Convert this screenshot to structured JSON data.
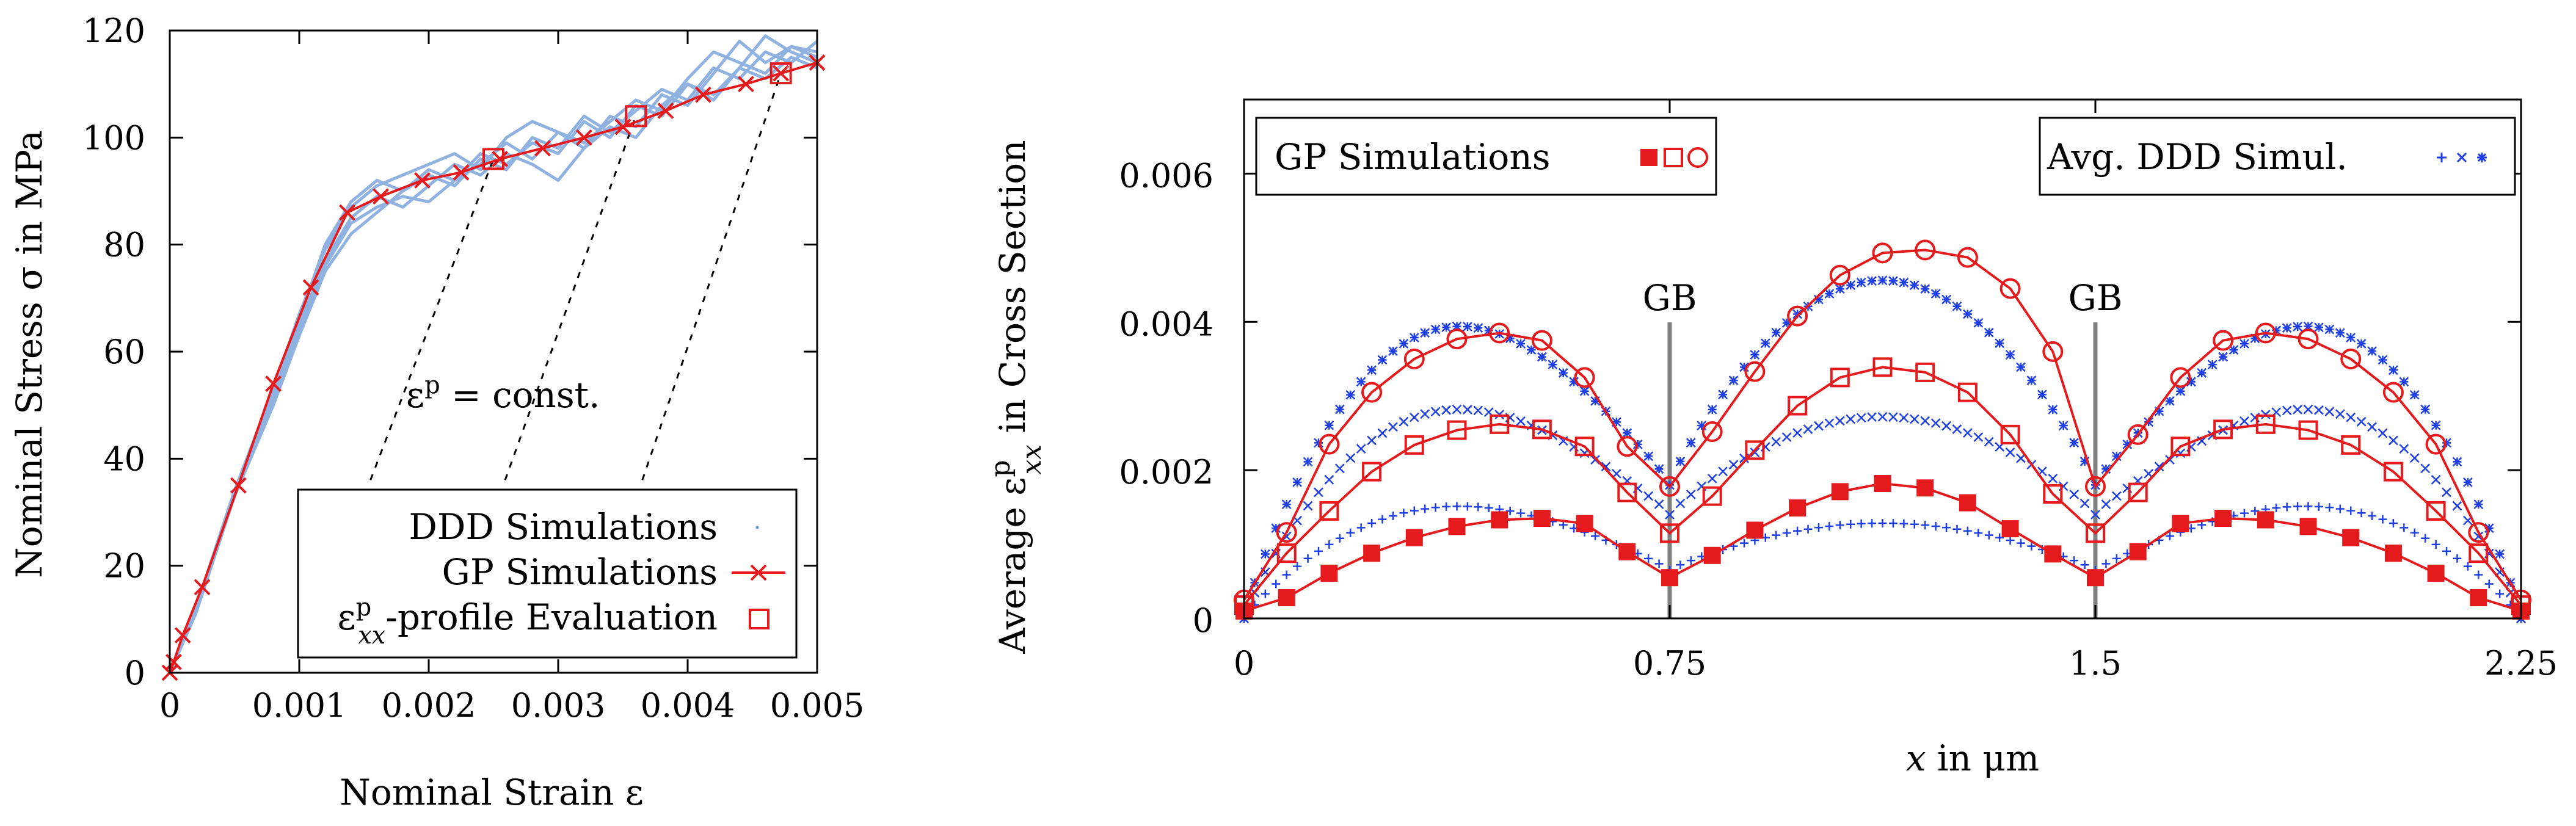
{
  "chart_data": [
    {
      "type": "line",
      "xlabel": "Nominal Strain ε",
      "ylabel": "Nominal Stress σ in MPa",
      "xlim": [
        0,
        0.005
      ],
      "ylim": [
        0,
        120
      ],
      "xticks": [
        0,
        0.001,
        0.002,
        0.003,
        0.004,
        0.005
      ],
      "xtick_labels": [
        "0",
        "0.001",
        "0.002",
        "0.003",
        "0.004",
        "0.005"
      ],
      "yticks": [
        0,
        20,
        40,
        60,
        80,
        100,
        120
      ],
      "ytick_labels": [
        "0",
        "20",
        "40",
        "60",
        "80",
        "100",
        "120"
      ],
      "annotation": "ε^p = const.",
      "annotation_base": "ε",
      "annotation_sup": "p",
      "annotation_rest": " = const.",
      "legend": {
        "placement": "bottom-right",
        "entries": [
          "DDD Simulations",
          "GP Simulations",
          "ε^p_xx-profile Evaluation"
        ],
        "ddd_label": "DDD Simulations",
        "gp_label": "GP Simulations",
        "eval_label_base": "ε",
        "eval_label_sup": "p",
        "eval_label_sub": "xx",
        "eval_label_rest": "-profile Evaluation"
      },
      "series": [
        {
          "name": "GP Simulations",
          "color": "#e41a1c",
          "marker": "x",
          "x": [
            0,
            3e-05,
            0.0001,
            0.00025,
            0.00053,
            0.0008,
            0.00109,
            0.00137,
            0.00163,
            0.00195,
            0.00225,
            0.00255,
            0.00288,
            0.0032,
            0.0035,
            0.00383,
            0.00412,
            0.00445,
            0.00472,
            0.005
          ],
          "y": [
            0,
            2,
            7,
            16,
            35,
            54,
            72,
            86,
            89,
            92,
            93.5,
            96,
            98,
            100,
            102,
            105,
            108,
            110,
            112,
            114
          ]
        },
        {
          "name": "DDD Simulations",
          "color": "#8fb2e0",
          "marker": "none",
          "x": [
            0,
            0.0002,
            0.0005,
            0.0008,
            0.001,
            0.0012,
            0.0014,
            0.0016,
            0.0018,
            0.002,
            0.0022,
            0.0024,
            0.0026,
            0.0028,
            0.003,
            0.0032,
            0.0034,
            0.0036,
            0.0038,
            0.004,
            0.0042,
            0.0044,
            0.0046,
            0.0048,
            0.005
          ],
          "runs": [
            [
              0,
              12,
              34,
              52,
              66,
              80,
              88,
              92,
              90,
              94,
              92,
              97,
              95,
              99,
              97,
              103,
              100,
              106,
              104,
              110,
              108,
              113,
              111,
              115,
              113
            ],
            [
              0,
              12,
              33,
              51,
              64,
              76,
              84,
              87,
              89,
              88,
              92,
              95,
              99,
              96,
              101,
              98,
              104,
              102,
              108,
              106,
              112,
              118,
              114,
              117,
              116
            ],
            [
              0,
              11,
              33,
              50,
              63,
              75,
              82,
              86,
              90,
              93,
              91,
              96,
              94,
              100,
              98,
              104,
              101,
              105,
              109,
              107,
              113,
              111,
              116,
              114,
              118
            ],
            [
              0,
              12,
              34,
              53,
              67,
              79,
              87,
              91,
              93,
              95,
              97,
              94,
              100,
              103,
              101,
              99,
              103,
              107,
              105,
              111,
              116,
              114,
              112,
              117,
              115
            ],
            [
              0,
              12,
              33,
              52,
              65,
              77,
              85,
              89,
              87,
              91,
              95,
              93,
              97,
              95,
              92,
              98,
              102,
              100,
              106,
              110,
              107,
              113,
              119,
              116,
              114
            ]
          ]
        },
        {
          "name": "ε^p_xx-profile Evaluation",
          "color": "#e41a1c",
          "marker": "open-square",
          "x": [
            0.0025,
            0.0036,
            0.00472
          ],
          "y": [
            96,
            104,
            112
          ]
        }
      ],
      "constant_strain_lines": [
        {
          "x_top": 0.0025,
          "y_top": 96,
          "x_bottom": 0.00155,
          "y_bottom": 36
        },
        {
          "x_top": 0.0036,
          "y_top": 104,
          "x_bottom": 0.00259,
          "y_bottom": 36
        },
        {
          "x_top": 0.00472,
          "y_top": 112,
          "x_bottom": 0.00365,
          "y_bottom": 36
        }
      ]
    },
    {
      "type": "scatter",
      "xlabel": "x in μm",
      "ylabel_parts": {
        "pre": "Average ",
        "base": "ε",
        "sup": "p",
        "sub": "xx",
        "post": "  in Cross Section"
      },
      "ylabel": "Average ε^p_xx in Cross Section",
      "xlim": [
        0,
        2.25
      ],
      "ylim": [
        0,
        0.007
      ],
      "xticks": [
        0,
        0.75,
        1.5,
        2.25
      ],
      "xtick_labels": [
        "0",
        "0.75",
        "1.5",
        "2.25"
      ],
      "yticks": [
        0,
        0.002,
        0.004,
        0.006
      ],
      "ytick_labels": [
        "0",
        "0.002",
        "0.004",
        "0.006"
      ],
      "grain_boundaries": [
        0.75,
        1.5
      ],
      "gb_label": "GB",
      "legend_left": {
        "placement": "top-left",
        "label": "GP Simulations"
      },
      "legend_right": {
        "placement": "top-right",
        "label": "Avg. DDD Simul."
      },
      "x_gp": [
        0,
        0.075,
        0.15,
        0.225,
        0.3,
        0.375,
        0.45,
        0.525,
        0.6,
        0.675,
        0.75,
        0.825,
        0.9,
        0.975,
        1.05,
        1.125,
        1.2,
        1.275,
        1.35,
        1.425,
        1.5,
        1.575,
        1.65,
        1.725,
        1.8,
        1.875,
        1.95,
        2.025,
        2.1,
        2.175,
        2.25
      ],
      "series": [
        {
          "name": "GP Simulations (filled squares)",
          "color": "#e41a1c",
          "marker": "filled-square",
          "y": [
            0.0001,
            0.00028,
            0.00061,
            0.00088,
            0.00109,
            0.00124,
            0.00133,
            0.00135,
            0.00128,
            0.0009,
            0.00055,
            0.00085,
            0.00119,
            0.00149,
            0.00171,
            0.00182,
            0.00176,
            0.00156,
            0.00121,
            0.00087,
            0.00055,
            0.0009,
            0.00128,
            0.00135,
            0.00133,
            0.00124,
            0.00109,
            0.00088,
            0.00061,
            0.00028,
            0.0001
          ]
        },
        {
          "name": "GP Simulations (open squares)",
          "color": "#e41a1c",
          "marker": "open-square",
          "y": [
            0.00018,
            0.00088,
            0.00145,
            0.00198,
            0.00234,
            0.00254,
            0.00262,
            0.00255,
            0.00232,
            0.0017,
            0.00115,
            0.00165,
            0.00227,
            0.00287,
            0.00325,
            0.00339,
            0.00332,
            0.00305,
            0.00248,
            0.00168,
            0.00115,
            0.0017,
            0.00232,
            0.00255,
            0.00262,
            0.00254,
            0.00234,
            0.00198,
            0.00145,
            0.00088,
            0.00018
          ]
        },
        {
          "name": "GP Simulations (open circles)",
          "color": "#e41a1c",
          "marker": "open-circle",
          "y": [
            0.00025,
            0.00116,
            0.00235,
            0.00305,
            0.0035,
            0.00377,
            0.00385,
            0.00375,
            0.00325,
            0.00232,
            0.00178,
            0.00252,
            0.00333,
            0.00408,
            0.00463,
            0.00493,
            0.00497,
            0.00487,
            0.00445,
            0.0036,
            0.00178,
            0.00248,
            0.00325,
            0.00375,
            0.00385,
            0.00377,
            0.0035,
            0.00305,
            0.00235,
            0.00116,
            0.00025
          ]
        },
        {
          "name": "Avg. DDD Simul. (plus)",
          "color": "#1f3fe6",
          "marker": "plus",
          "envelope": "gb_dip",
          "peak": 0.00148,
          "gb_dip": 0.00065,
          "mid_peak": 0.00122
        },
        {
          "name": "Avg. DDD Simul. (cross)",
          "color": "#1f3fe6",
          "marker": "cross",
          "envelope": "gb_dip",
          "peak": 0.00275,
          "gb_dip": 0.0014,
          "mid_peak": 0.00258
        },
        {
          "name": "Avg. DDD Simul. (star)",
          "color": "#1f3fe6",
          "marker": "star",
          "envelope": "gb_dip",
          "peak": 0.00385,
          "gb_dip": 0.0018,
          "mid_peak": 0.00438
        }
      ]
    }
  ]
}
